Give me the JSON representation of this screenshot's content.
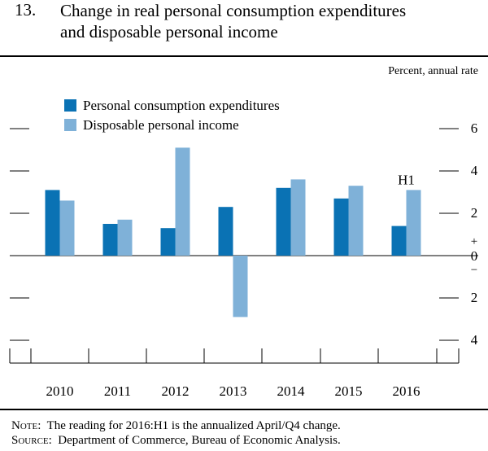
{
  "figure": {
    "number": "13.",
    "title_line1": "Change in real personal consumption expenditures",
    "title_line2": "and disposable personal income",
    "unit_label": "Percent, annual rate"
  },
  "notes": {
    "note_label": "Note:",
    "note_text": "The reading for 2016:H1 is the annualized April/Q4 change.",
    "source_label": "Source:",
    "source_text": "Department of Commerce, Bureau of Economic Analysis."
  },
  "chart_data": {
    "type": "bar",
    "categories": [
      "2010",
      "2011",
      "2012",
      "2013",
      "2014",
      "2015",
      "2016"
    ],
    "series": [
      {
        "name": "Personal consumption expenditures",
        "color": "#0a72b4",
        "values": [
          3.1,
          1.5,
          1.3,
          2.3,
          3.2,
          2.7,
          1.4
        ]
      },
      {
        "name": "Disposable personal income",
        "color": "#7fb1d8",
        "values": [
          2.6,
          1.7,
          5.1,
          -2.9,
          3.6,
          3.3,
          3.1
        ]
      }
    ],
    "ylim": [
      -5.4,
      6
    ],
    "yticks": [
      6,
      4,
      2,
      0,
      -2,
      -4
    ],
    "ytick_labels": [
      "6",
      "4",
      "2",
      "0",
      "2",
      "4"
    ],
    "plus_sign": "+",
    "minus_sign": "−",
    "annotation": {
      "category": "2016",
      "text": "H1"
    },
    "legend_position": "top-left"
  }
}
